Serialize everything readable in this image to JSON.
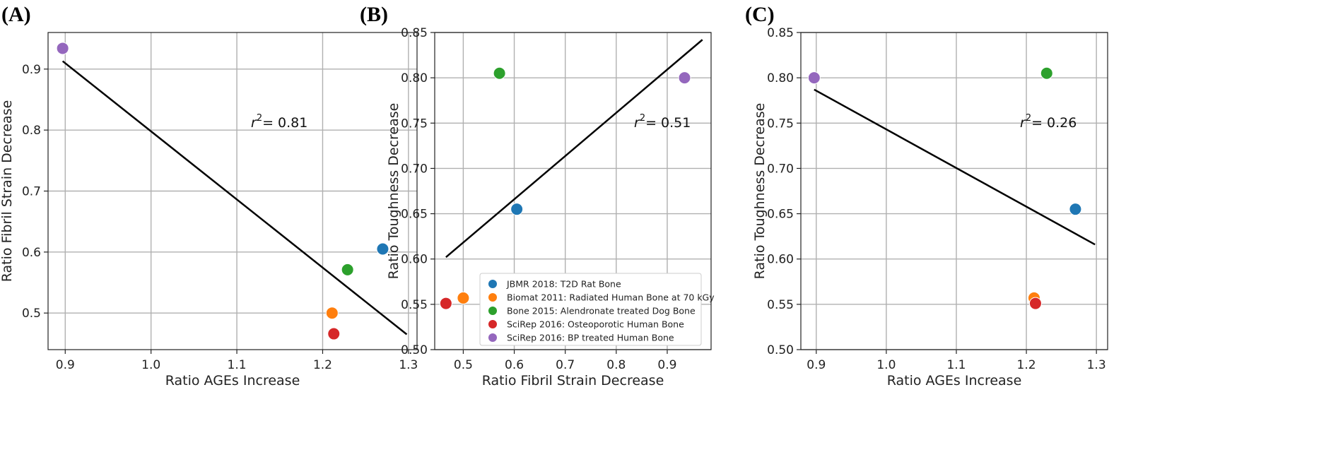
{
  "colors": {
    "jbmr": "#1f77b4",
    "biomat": "#ff7f0e",
    "bone": "#2ca02c",
    "scirep_osteo": "#d62728",
    "scirep_bp": "#9467bd",
    "fit_line": "#000000",
    "grid": "#b0b0b0"
  },
  "legend": {
    "entries": [
      {
        "label": "JBMR 2018:  T2D Rat Bone",
        "color": "#1f77b4"
      },
      {
        "label": "Biomat 2011: Radiated Human Bone at 70 kGy",
        "color": "#ff7f0e"
      },
      {
        "label": "Bone 2015: Alendronate treated Dog Bone",
        "color": "#2ca02c"
      },
      {
        "label": "SciRep 2016: Osteoporotic Human Bone",
        "color": "#d62728"
      },
      {
        "label": "SciRep 2016: BP treated Human Bone",
        "color": "#9467bd"
      }
    ],
    "placement": "lower-right of panel B"
  },
  "chart_data": [
    {
      "panel": "(A)",
      "type": "scatter",
      "xlabel": "Ratio AGEs Increase",
      "ylabel": "Ratio Fibril Strain Decrease",
      "xlim": [
        0.88,
        1.31
      ],
      "ylim": [
        0.44,
        0.96
      ],
      "xticks": [
        "0.9",
        "1.0",
        "1.1",
        "1.2",
        "1.3"
      ],
      "yticks": [
        "0.5",
        "0.6",
        "0.7",
        "0.8",
        "0.9"
      ],
      "grid": true,
      "r2_prefix": "r",
      "r2_sup": "2",
      "r2_value": "= 0.81",
      "points": [
        {
          "x": 0.897,
          "y": 0.934,
          "color": "#9467bd"
        },
        {
          "x": 1.27,
          "y": 0.605,
          "color": "#1f77b4"
        },
        {
          "x": 1.229,
          "y": 0.571,
          "color": "#2ca02c"
        },
        {
          "x": 1.211,
          "y": 0.5,
          "color": "#ff7f0e"
        },
        {
          "x": 1.213,
          "y": 0.466,
          "color": "#d62728"
        }
      ],
      "fit": [
        [
          0.897,
          0.913
        ],
        [
          1.298,
          0.465
        ]
      ]
    },
    {
      "panel": "(B)",
      "type": "scatter",
      "xlabel": "Ratio Fibril Strain Decrease",
      "ylabel": "Ratio Toughness Decrease",
      "xlim": [
        0.444,
        0.986
      ],
      "ylim": [
        0.5,
        0.85
      ],
      "xticks": [
        "0.5",
        "0.6",
        "0.7",
        "0.8",
        "0.9"
      ],
      "yticks": [
        "0.50",
        "0.55",
        "0.60",
        "0.65",
        "0.70",
        "0.75",
        "0.80",
        "0.85"
      ],
      "grid": true,
      "r2_prefix": "r",
      "r2_sup": "2",
      "r2_value": "= 0.51",
      "points": [
        {
          "x": 0.605,
          "y": 0.655,
          "color": "#1f77b4"
        },
        {
          "x": 0.5,
          "y": 0.557,
          "color": "#ff7f0e"
        },
        {
          "x": 0.571,
          "y": 0.805,
          "color": "#2ca02c"
        },
        {
          "x": 0.466,
          "y": 0.551,
          "color": "#d62728"
        },
        {
          "x": 0.934,
          "y": 0.8,
          "color": "#9467bd"
        }
      ],
      "fit": [
        [
          0.466,
          0.602
        ],
        [
          0.969,
          0.842
        ]
      ]
    },
    {
      "panel": "(C)",
      "type": "scatter",
      "xlabel": "Ratio AGEs Increase",
      "ylabel": "Ratio Toughness Decrease",
      "xlim": [
        0.878,
        1.316
      ],
      "ylim": [
        0.5,
        0.85
      ],
      "xticks": [
        "0.9",
        "1.0",
        "1.1",
        "1.2",
        "1.3"
      ],
      "yticks": [
        "0.50",
        "0.55",
        "0.60",
        "0.65",
        "0.70",
        "0.75",
        "0.80",
        "0.85"
      ],
      "grid": true,
      "r2_prefix": "r",
      "r2_sup": "2",
      "r2_value": "= 0.26",
      "points": [
        {
          "x": 1.27,
          "y": 0.655,
          "color": "#1f77b4"
        },
        {
          "x": 1.211,
          "y": 0.557,
          "color": "#ff7f0e"
        },
        {
          "x": 1.229,
          "y": 0.805,
          "color": "#2ca02c"
        },
        {
          "x": 1.213,
          "y": 0.551,
          "color": "#d62728"
        },
        {
          "x": 0.897,
          "y": 0.8,
          "color": "#9467bd"
        }
      ],
      "fit": [
        [
          0.897,
          0.787
        ],
        [
          1.298,
          0.616
        ]
      ]
    }
  ]
}
